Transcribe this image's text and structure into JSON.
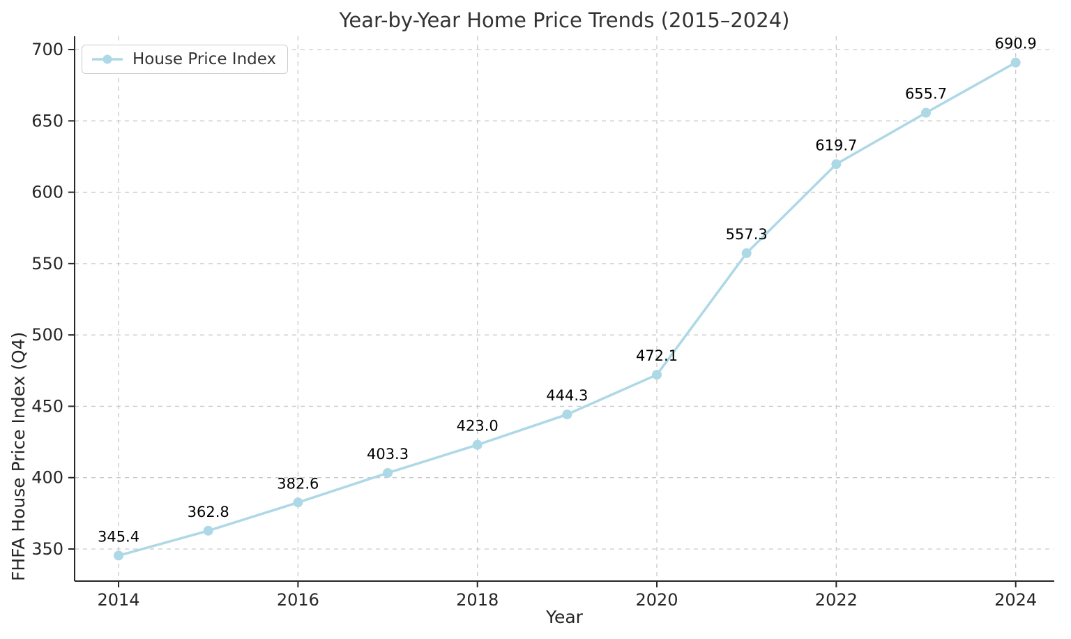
{
  "figure": {
    "background": "#ffffff"
  },
  "chart_data": {
    "type": "line",
    "title": "Year-by-Year Home Price Trends (2015–2024)",
    "xlabel": "Year",
    "ylabel": "FHFA House Price Index (Q4)",
    "legend": {
      "position": "upper-left",
      "entries": [
        "House Price Index"
      ]
    },
    "x": [
      2014,
      2015,
      2016,
      2017,
      2018,
      2019,
      2020,
      2021,
      2022,
      2023,
      2024
    ],
    "series": [
      {
        "name": "House Price Index",
        "values": [
          345.4,
          362.8,
          382.6,
          403.3,
          423.0,
          444.3,
          472.1,
          557.3,
          619.7,
          655.7,
          690.9
        ],
        "point_labels": [
          "345.4",
          "362.8",
          "382.6",
          "403.3",
          "423.0",
          "444.3",
          "472.1",
          "557.3",
          "619.7",
          "655.7",
          "690.9"
        ]
      }
    ],
    "xticks": [
      2014,
      2016,
      2018,
      2020,
      2022,
      2024
    ],
    "yticks": [
      350,
      400,
      450,
      500,
      550,
      600,
      650,
      700
    ],
    "xlim": [
      2013.51,
      2024.43
    ],
    "ylim": [
      327.5,
      709.3
    ],
    "grid": true,
    "grid_style": "dashed",
    "colors": {
      "line": "#ADD8E6",
      "marker": "#ADD8E6",
      "grid": "#c9c9c9",
      "spine": "#262626",
      "tick_label": "#262626",
      "annotation": "#000000",
      "title": "#333333"
    }
  }
}
